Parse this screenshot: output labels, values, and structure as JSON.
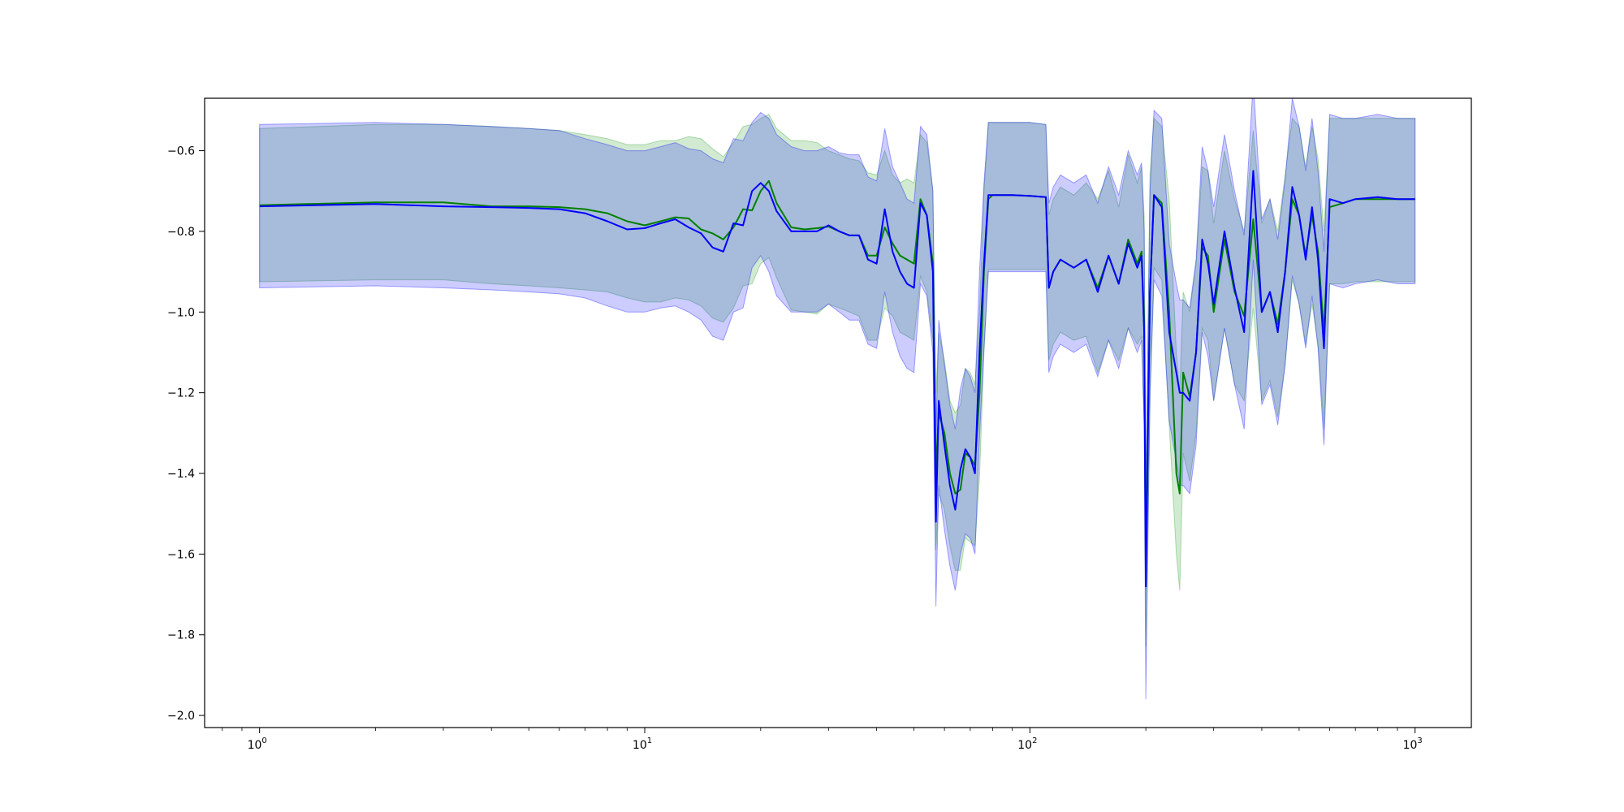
{
  "chart_data": {
    "type": "line",
    "title": "",
    "xlabel": "",
    "ylabel": "",
    "xscale": "log",
    "xlim": [
      0.72,
      1400
    ],
    "ylim": [
      -2.03,
      -0.47
    ],
    "grid": false,
    "legend": "none",
    "x_ticks": [
      {
        "value": 1,
        "base": "10",
        "exp": "0"
      },
      {
        "value": 10,
        "base": "10",
        "exp": "1"
      },
      {
        "value": 100,
        "base": "10",
        "exp": "2"
      },
      {
        "value": 1000,
        "base": "10",
        "exp": "3"
      }
    ],
    "y_ticks": [
      {
        "value": -0.6,
        "label": "−0.6"
      },
      {
        "value": -0.8,
        "label": "−0.8"
      },
      {
        "value": -1.0,
        "label": "−1.0"
      },
      {
        "value": -1.2,
        "label": "−1.2"
      },
      {
        "value": -1.4,
        "label": "−1.4"
      },
      {
        "value": -1.6,
        "label": "−1.6"
      },
      {
        "value": -1.8,
        "label": "−1.8"
      },
      {
        "value": -2.0,
        "label": "−2.0"
      }
    ],
    "series": [
      {
        "color": "#008000",
        "band_color": "#2ca02c",
        "x": [
          1,
          2,
          3,
          4,
          5,
          6,
          7,
          8,
          9,
          10,
          11,
          12,
          13,
          14,
          15,
          16,
          17,
          18,
          19,
          20,
          21,
          22,
          24,
          26,
          28,
          30,
          32,
          34,
          36,
          38,
          40,
          42,
          44,
          46,
          48,
          50,
          52,
          54,
          56,
          57,
          58,
          60,
          62,
          64,
          66,
          68,
          70,
          72,
          74,
          76,
          78,
          80,
          90,
          100,
          110,
          112,
          115,
          120,
          130,
          140,
          150,
          160,
          170,
          180,
          190,
          195,
          198,
          200,
          205,
          210,
          220,
          230,
          240,
          245,
          250,
          260,
          270,
          280,
          290,
          300,
          320,
          340,
          360,
          380,
          400,
          420,
          440,
          460,
          480,
          500,
          520,
          540,
          560,
          580,
          600,
          650,
          700,
          800,
          900,
          1000
        ],
        "y": [
          -0.735,
          -0.728,
          -0.728,
          -0.738,
          -0.738,
          -0.74,
          -0.745,
          -0.755,
          -0.775,
          -0.785,
          -0.775,
          -0.765,
          -0.768,
          -0.795,
          -0.805,
          -0.82,
          -0.79,
          -0.745,
          -0.748,
          -0.7,
          -0.675,
          -0.73,
          -0.79,
          -0.795,
          -0.792,
          -0.788,
          -0.8,
          -0.81,
          -0.81,
          -0.86,
          -0.86,
          -0.79,
          -0.83,
          -0.86,
          -0.87,
          -0.88,
          -0.72,
          -0.76,
          -0.88,
          -1.4,
          -1.25,
          -1.3,
          -1.4,
          -1.45,
          -1.44,
          -1.35,
          -1.36,
          -1.38,
          -1.2,
          -0.9,
          -0.72,
          -0.71,
          -0.71,
          -0.712,
          -0.715,
          -0.94,
          -0.9,
          -0.87,
          -0.89,
          -0.87,
          -0.94,
          -0.86,
          -0.93,
          -0.82,
          -0.88,
          -0.85,
          -1.02,
          -1.65,
          -0.95,
          -0.71,
          -0.73,
          -1.0,
          -1.4,
          -1.45,
          -1.15,
          -1.21,
          -1.1,
          -0.84,
          -0.86,
          -1.0,
          -0.82,
          -0.95,
          -1.01,
          -0.77,
          -1.0,
          -0.95,
          -1.03,
          -0.9,
          -0.72,
          -0.76,
          -0.86,
          -0.76,
          -0.85,
          -1.05,
          -0.74,
          -0.73,
          -0.72,
          -0.72,
          -0.72,
          -0.72
        ],
        "upper": [
          -0.545,
          -0.535,
          -0.535,
          -0.54,
          -0.545,
          -0.55,
          -0.56,
          -0.57,
          -0.585,
          -0.585,
          -0.575,
          -0.575,
          -0.565,
          -0.57,
          -0.595,
          -0.615,
          -0.58,
          -0.54,
          -0.535,
          -0.52,
          -0.51,
          -0.545,
          -0.575,
          -0.575,
          -0.58,
          -0.6,
          -0.61,
          -0.62,
          -0.625,
          -0.655,
          -0.66,
          -0.6,
          -0.66,
          -0.68,
          -0.67,
          -0.68,
          -0.56,
          -0.58,
          -0.7,
          -1.2,
          -1.05,
          -1.12,
          -1.22,
          -1.25,
          -1.23,
          -1.14,
          -1.15,
          -1.18,
          -1.0,
          -0.7,
          -0.53,
          -0.53,
          -0.53,
          -0.53,
          -0.535,
          -0.76,
          -0.72,
          -0.69,
          -0.71,
          -0.68,
          -0.72,
          -0.65,
          -0.74,
          -0.61,
          -0.68,
          -0.64,
          -0.76,
          -1.46,
          -0.66,
          -0.52,
          -0.54,
          -0.72,
          -1.1,
          -1.2,
          -0.95,
          -1.0,
          -0.88,
          -0.64,
          -0.65,
          -0.78,
          -0.6,
          -0.72,
          -0.8,
          -0.55,
          -0.78,
          -0.72,
          -0.8,
          -0.66,
          -0.52,
          -0.54,
          -0.64,
          -0.54,
          -0.62,
          -0.8,
          -0.52,
          -0.52,
          -0.52,
          -0.52,
          -0.52,
          -0.52
        ],
        "lower": [
          -0.925,
          -0.92,
          -0.92,
          -0.93,
          -0.935,
          -0.94,
          -0.945,
          -0.95,
          -0.965,
          -0.975,
          -0.975,
          -0.965,
          -0.97,
          -0.985,
          -1.015,
          -1.025,
          -0.99,
          -0.935,
          -0.93,
          -0.88,
          -0.865,
          -0.915,
          -0.995,
          -1.0,
          -1.005,
          -0.98,
          -0.99,
          -1.0,
          -1.01,
          -1.07,
          -1.07,
          -0.99,
          -1.01,
          -1.05,
          -1.06,
          -1.07,
          -0.91,
          -0.95,
          -1.07,
          -1.59,
          -1.45,
          -1.49,
          -1.58,
          -1.64,
          -1.64,
          -1.56,
          -1.57,
          -1.58,
          -1.41,
          -1.1,
          -0.895,
          -0.895,
          -0.895,
          -0.895,
          -0.895,
          -1.12,
          -1.08,
          -1.05,
          -1.07,
          -1.06,
          -1.15,
          -1.07,
          -1.12,
          -1.04,
          -1.08,
          -1.06,
          -1.29,
          -1.83,
          -1.24,
          -0.89,
          -0.92,
          -1.28,
          -1.6,
          -1.69,
          -1.35,
          -1.42,
          -1.3,
          -1.04,
          -1.07,
          -1.22,
          -1.04,
          -1.18,
          -1.22,
          -0.99,
          -1.22,
          -1.17,
          -1.26,
          -1.13,
          -0.92,
          -0.98,
          -1.08,
          -0.98,
          -1.08,
          -1.29,
          -0.93,
          -0.93,
          -0.925,
          -0.925,
          -0.925,
          -0.925
        ]
      },
      {
        "color": "#0000ff",
        "band_color": "#0000ff",
        "x": [
          1,
          2,
          3,
          4,
          5,
          6,
          7,
          8,
          9,
          10,
          11,
          12,
          13,
          14,
          15,
          16,
          17,
          18,
          19,
          20,
          21,
          22,
          24,
          26,
          28,
          30,
          32,
          34,
          36,
          38,
          40,
          42,
          44,
          46,
          48,
          50,
          52,
          54,
          56,
          57,
          58,
          60,
          62,
          64,
          66,
          68,
          70,
          72,
          74,
          76,
          78,
          80,
          90,
          100,
          110,
          112,
          115,
          120,
          130,
          140,
          150,
          160,
          170,
          180,
          190,
          195,
          198,
          200,
          205,
          210,
          220,
          230,
          240,
          245,
          250,
          260,
          270,
          280,
          290,
          300,
          320,
          340,
          360,
          380,
          400,
          420,
          440,
          460,
          480,
          500,
          520,
          540,
          560,
          580,
          600,
          650,
          700,
          800,
          900,
          1000
        ],
        "y": [
          -0.738,
          -0.732,
          -0.738,
          -0.74,
          -0.742,
          -0.745,
          -0.755,
          -0.775,
          -0.795,
          -0.792,
          -0.78,
          -0.77,
          -0.79,
          -0.805,
          -0.84,
          -0.85,
          -0.78,
          -0.785,
          -0.7,
          -0.68,
          -0.7,
          -0.75,
          -0.8,
          -0.8,
          -0.8,
          -0.785,
          -0.8,
          -0.81,
          -0.81,
          -0.87,
          -0.88,
          -0.745,
          -0.85,
          -0.9,
          -0.93,
          -0.94,
          -0.73,
          -0.76,
          -0.9,
          -1.52,
          -1.22,
          -1.33,
          -1.43,
          -1.49,
          -1.39,
          -1.34,
          -1.36,
          -1.4,
          -1.1,
          -0.88,
          -0.71,
          -0.71,
          -0.71,
          -0.712,
          -0.715,
          -0.94,
          -0.9,
          -0.87,
          -0.89,
          -0.87,
          -0.95,
          -0.86,
          -0.93,
          -0.83,
          -0.89,
          -0.86,
          -1.05,
          -1.68,
          -0.95,
          -0.71,
          -0.74,
          -1.05,
          -1.15,
          -1.2,
          -1.2,
          -1.22,
          -1.1,
          -0.82,
          -0.88,
          -0.98,
          -0.8,
          -0.94,
          -1.05,
          -0.65,
          -1.0,
          -0.95,
          -1.05,
          -0.9,
          -0.69,
          -0.76,
          -0.87,
          -0.74,
          -0.87,
          -1.09,
          -0.72,
          -0.73,
          -0.72,
          -0.715,
          -0.72,
          -0.72
        ],
        "upper": [
          -0.535,
          -0.53,
          -0.535,
          -0.54,
          -0.545,
          -0.55,
          -0.57,
          -0.585,
          -0.6,
          -0.6,
          -0.59,
          -0.58,
          -0.595,
          -0.6,
          -0.62,
          -0.63,
          -0.57,
          -0.575,
          -0.53,
          -0.505,
          -0.52,
          -0.56,
          -0.59,
          -0.6,
          -0.6,
          -0.59,
          -0.605,
          -0.61,
          -0.61,
          -0.665,
          -0.675,
          -0.545,
          -0.64,
          -0.68,
          -0.72,
          -0.73,
          -0.54,
          -0.56,
          -0.7,
          -1.31,
          -1.02,
          -1.13,
          -1.23,
          -1.29,
          -1.19,
          -1.14,
          -1.16,
          -1.2,
          -0.9,
          -0.68,
          -0.53,
          -0.53,
          -0.53,
          -0.53,
          -0.535,
          -0.73,
          -0.69,
          -0.66,
          -0.68,
          -0.66,
          -0.73,
          -0.64,
          -0.71,
          -0.6,
          -0.66,
          -0.63,
          -0.8,
          -1.46,
          -0.7,
          -0.5,
          -0.52,
          -0.83,
          -0.93,
          -0.97,
          -0.97,
          -0.99,
          -0.87,
          -0.59,
          -0.65,
          -0.74,
          -0.56,
          -0.7,
          -0.81,
          -0.43,
          -0.77,
          -0.72,
          -0.82,
          -0.67,
          -0.47,
          -0.54,
          -0.65,
          -0.52,
          -0.65,
          -0.85,
          -0.51,
          -0.52,
          -0.52,
          -0.51,
          -0.52,
          -0.52
        ],
        "lower": [
          -0.94,
          -0.935,
          -0.94,
          -0.945,
          -0.95,
          -0.955,
          -0.965,
          -0.985,
          -1.0,
          -1.0,
          -0.99,
          -0.985,
          -1.0,
          -1.02,
          -1.06,
          -1.07,
          -1.0,
          -0.99,
          -0.89,
          -0.86,
          -0.9,
          -0.96,
          -1.0,
          -1.0,
          -1.0,
          -0.98,
          -1.0,
          -1.02,
          -1.02,
          -1.08,
          -1.09,
          -0.95,
          -1.05,
          -1.11,
          -1.14,
          -1.15,
          -0.93,
          -0.96,
          -1.1,
          -1.73,
          -1.43,
          -1.54,
          -1.63,
          -1.69,
          -1.6,
          -1.55,
          -1.56,
          -1.6,
          -1.31,
          -1.09,
          -0.9,
          -0.9,
          -0.9,
          -0.9,
          -0.9,
          -1.15,
          -1.11,
          -1.08,
          -1.1,
          -1.08,
          -1.16,
          -1.07,
          -1.14,
          -1.04,
          -1.1,
          -1.07,
          -1.28,
          -1.96,
          -1.2,
          -0.92,
          -0.96,
          -1.27,
          -1.37,
          -1.43,
          -1.43,
          -1.45,
          -1.33,
          -1.05,
          -1.11,
          -1.22,
          -1.04,
          -1.18,
          -1.29,
          -0.87,
          -1.23,
          -1.18,
          -1.28,
          -1.13,
          -0.91,
          -0.98,
          -1.09,
          -0.96,
          -1.09,
          -1.33,
          -0.93,
          -0.94,
          -0.93,
          -0.92,
          -0.93,
          -0.93
        ]
      }
    ]
  }
}
